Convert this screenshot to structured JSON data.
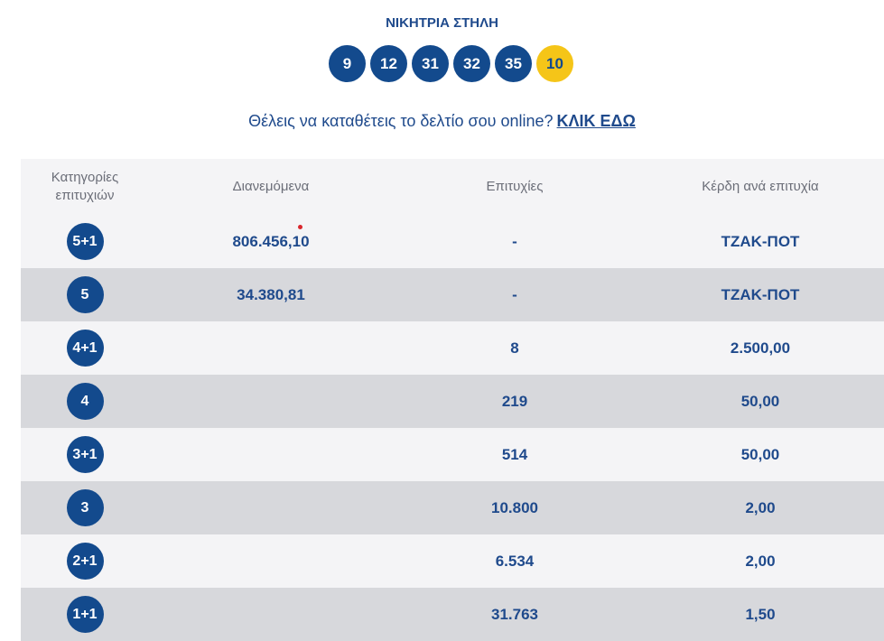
{
  "title": "ΝΙΚΗΤΡΙΑ ΣΤΗΛΗ",
  "winning_numbers": [
    "9",
    "12",
    "31",
    "32",
    "35"
  ],
  "bonus_number": "10",
  "online_prompt": {
    "text": "Θέλεις να καταθέτεις το δελτίο σου online?",
    "link": "ΚΛΙΚ ΕΔΩ"
  },
  "table": {
    "headers": {
      "category": "Κατηγορίες επιτυχιών",
      "distributed": "Διανεμόμενα",
      "winners": "Επιτυχίες",
      "prize": "Κέρδη ανά επιτυχία"
    },
    "rows": [
      {
        "category": "5+1",
        "distributed": "806.456,10",
        "winners": "-",
        "prize": "ΤΖΑΚ-ΠΟΤ"
      },
      {
        "category": "5",
        "distributed": "34.380,81",
        "winners": "-",
        "prize": "ΤΖΑΚ-ΠΟΤ"
      },
      {
        "category": "4+1",
        "distributed": "",
        "winners": "8",
        "prize": "2.500,00"
      },
      {
        "category": "4",
        "distributed": "",
        "winners": "219",
        "prize": "50,00"
      },
      {
        "category": "3+1",
        "distributed": "",
        "winners": "514",
        "prize": "50,00"
      },
      {
        "category": "3",
        "distributed": "",
        "winners": "10.800",
        "prize": "2,00"
      },
      {
        "category": "2+1",
        "distributed": "",
        "winners": "6.534",
        "prize": "2,00"
      },
      {
        "category": "1+1",
        "distributed": "",
        "winners": "31.763",
        "prize": "1,50"
      }
    ]
  },
  "colors": {
    "primary": "#134a8d",
    "bonus": "#f5c518",
    "row_light": "#f4f4f6",
    "row_dark": "#d7d8dc",
    "marker": "#d9262c"
  }
}
